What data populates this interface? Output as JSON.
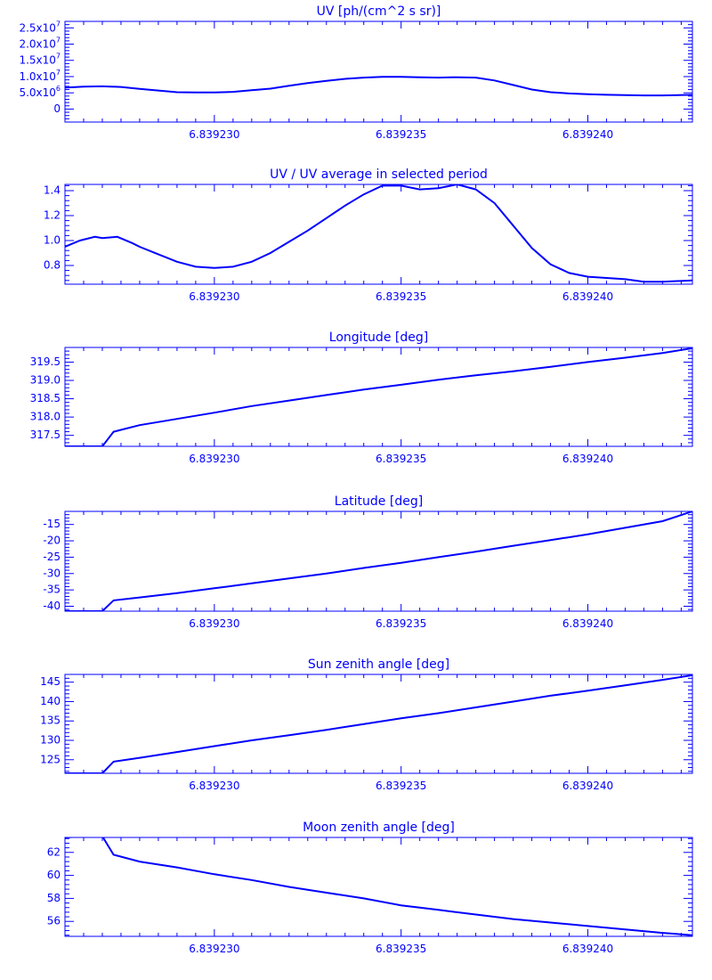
{
  "figure": {
    "color": "#0000ff"
  },
  "chart_data": [
    {
      "type": "line",
      "title": "UV [ph/(cm^2 s sr)]",
      "xlim": [
        6.839226,
        6.8392428
      ],
      "ylim": [
        -4000000,
        27000000
      ],
      "xticks": [
        6.83923,
        6.839235,
        6.83924
      ],
      "xtick_labels": [
        "6.839230",
        "6.839235",
        "6.839240"
      ],
      "yticks": [
        0,
        5000000,
        10000000,
        15000000,
        20000000,
        25000000
      ],
      "ytick_labels": [
        "0",
        "5.0x10^6",
        "1.0x10^7",
        "1.5x10^7",
        "2.0x10^7",
        "2.5x10^7"
      ],
      "x": [
        6.839226,
        6.8392265,
        6.839227,
        6.8392275,
        6.839228,
        6.8392285,
        6.839229,
        6.8392295,
        6.83923,
        6.8392305,
        6.839231,
        6.8392315,
        6.839232,
        6.8392325,
        6.839233,
        6.8392335,
        6.839234,
        6.8392345,
        6.839235,
        6.8392355,
        6.839236,
        6.8392365,
        6.839237,
        6.8392375,
        6.839238,
        6.8392385,
        6.839239,
        6.8392395,
        6.83924,
        6.8392405,
        6.839241,
        6.8392415,
        6.839242,
        6.8392428
      ],
      "values": [
        6600000,
        6900000,
        7000000,
        6800000,
        6200000,
        5700000,
        5200000,
        5100000,
        5100000,
        5300000,
        5800000,
        6300000,
        7200000,
        8000000,
        8700000,
        9300000,
        9700000,
        9900000,
        9900000,
        9800000,
        9700000,
        9800000,
        9700000,
        8800000,
        7400000,
        6000000,
        5200000,
        4800000,
        4600000,
        4400000,
        4300000,
        4200000,
        4200000,
        4400000
      ]
    },
    {
      "type": "line",
      "title": "UV / UV average in selected period",
      "xlim": [
        6.839226,
        6.8392428
      ],
      "ylim": [
        0.65,
        1.45
      ],
      "xticks": [
        6.83923,
        6.839235,
        6.83924
      ],
      "xtick_labels": [
        "6.839230",
        "6.839235",
        "6.839240"
      ],
      "yticks": [
        0.8,
        1.0,
        1.2,
        1.4
      ],
      "ytick_labels": [
        "0.8",
        "1.0",
        "1.2",
        "1.4"
      ],
      "x": [
        6.839226,
        6.8392264,
        6.8392268,
        6.839227,
        6.8392274,
        6.8392278,
        6.839228,
        6.8392285,
        6.839229,
        6.8392295,
        6.83923,
        6.8392305,
        6.839231,
        6.8392315,
        6.839232,
        6.8392325,
        6.839233,
        6.8392335,
        6.839234,
        6.8392345,
        6.839235,
        6.8392355,
        6.839236,
        6.8392365,
        6.839237,
        6.8392375,
        6.839238,
        6.8392385,
        6.839239,
        6.8392395,
        6.83924,
        6.8392405,
        6.839241,
        6.8392415,
        6.839242,
        6.8392428
      ],
      "values": [
        0.95,
        1.0,
        1.03,
        1.02,
        1.03,
        0.98,
        0.95,
        0.89,
        0.83,
        0.79,
        0.78,
        0.79,
        0.83,
        0.9,
        0.99,
        1.08,
        1.18,
        1.28,
        1.37,
        1.44,
        1.44,
        1.41,
        1.42,
        1.45,
        1.41,
        1.3,
        1.12,
        0.94,
        0.81,
        0.74,
        0.71,
        0.7,
        0.69,
        0.67,
        0.67,
        0.68
      ]
    },
    {
      "type": "line",
      "title": "Longitude [deg]",
      "xlim": [
        6.839226,
        6.8392428
      ],
      "ylim": [
        317.2,
        319.9
      ],
      "xticks": [
        6.83923,
        6.839235,
        6.83924
      ],
      "xtick_labels": [
        "6.839230",
        "6.839235",
        "6.839240"
      ],
      "yticks": [
        317.5,
        318.0,
        318.5,
        319.0,
        319.5
      ],
      "ytick_labels": [
        "317.5",
        "318.0",
        "318.5",
        "319.0",
        "319.5"
      ],
      "x": [
        6.839226,
        6.839227,
        6.8392273,
        6.8392275,
        6.839228,
        6.839229,
        6.83923,
        6.839231,
        6.839232,
        6.839233,
        6.839234,
        6.839235,
        6.839236,
        6.839237,
        6.839238,
        6.839239,
        6.83924,
        6.839241,
        6.839242,
        6.8392428
      ],
      "values": [
        317.2,
        317.2,
        317.6,
        317.65,
        317.78,
        317.95,
        318.12,
        318.3,
        318.45,
        318.6,
        318.75,
        318.88,
        319.02,
        319.14,
        319.25,
        319.37,
        319.5,
        319.62,
        319.75,
        319.88
      ]
    },
    {
      "type": "line",
      "title": "Latitude [deg]",
      "xlim": [
        6.839226,
        6.8392428
      ],
      "ylim": [
        -41.5,
        -11
      ],
      "xticks": [
        6.83923,
        6.839235,
        6.83924
      ],
      "xtick_labels": [
        "6.839230",
        "6.839235",
        "6.839240"
      ],
      "yticks": [
        -40,
        -35,
        -30,
        -25,
        -20,
        -15
      ],
      "ytick_labels": [
        "-40",
        "-35",
        "-30",
        "-25",
        "-20",
        "-15"
      ],
      "x": [
        6.839226,
        6.839227,
        6.8392273,
        6.839228,
        6.839229,
        6.83923,
        6.839231,
        6.839232,
        6.839233,
        6.839234,
        6.839235,
        6.839236,
        6.839237,
        6.839238,
        6.839239,
        6.83924,
        6.839241,
        6.839242,
        6.8392428
      ],
      "values": [
        -41.5,
        -41.5,
        -38.2,
        -37.3,
        -36.0,
        -34.5,
        -33.0,
        -31.5,
        -30.0,
        -28.3,
        -26.7,
        -25.0,
        -23.3,
        -21.5,
        -19.8,
        -18.0,
        -16.0,
        -14.0,
        -11.0
      ]
    },
    {
      "type": "line",
      "title": "Sun zenith angle [deg]",
      "xlim": [
        6.839226,
        6.8392428
      ],
      "ylim": [
        121.5,
        147
      ],
      "xticks": [
        6.83923,
        6.839235,
        6.83924
      ],
      "xtick_labels": [
        "6.839230",
        "6.839235",
        "6.839240"
      ],
      "yticks": [
        125,
        130,
        135,
        140,
        145
      ],
      "ytick_labels": [
        "125",
        "130",
        "135",
        "140",
        "145"
      ],
      "x": [
        6.839226,
        6.839227,
        6.8392273,
        6.839228,
        6.839229,
        6.83923,
        6.839231,
        6.839232,
        6.839233,
        6.839234,
        6.839235,
        6.839236,
        6.839237,
        6.839238,
        6.839239,
        6.83924,
        6.839241,
        6.839242,
        6.8392428
      ],
      "values": [
        121.5,
        121.5,
        124.5,
        125.5,
        127.0,
        128.5,
        130.0,
        131.3,
        132.7,
        134.2,
        135.7,
        137.0,
        138.5,
        140.0,
        141.5,
        142.8,
        144.2,
        145.6,
        146.8
      ]
    },
    {
      "type": "line",
      "title": "Moon zenith angle [deg]",
      "xlim": [
        6.839226,
        6.8392428
      ],
      "ylim": [
        54.7,
        63.3
      ],
      "xticks": [
        6.83923,
        6.839235,
        6.83924
      ],
      "xtick_labels": [
        "6.839230",
        "6.839235",
        "6.839240"
      ],
      "yticks": [
        56,
        58,
        60,
        62
      ],
      "ytick_labels": [
        "56",
        "58",
        "60",
        "62"
      ],
      "x": [
        6.839226,
        6.8392265,
        6.839227,
        6.8392273,
        6.839228,
        6.839229,
        6.83923,
        6.839231,
        6.839232,
        6.839233,
        6.839234,
        6.839235,
        6.839236,
        6.839237,
        6.839238,
        6.839239,
        6.83924,
        6.839241,
        6.839242,
        6.8392428
      ],
      "values": [
        63.3,
        63.4,
        63.4,
        61.8,
        61.2,
        60.7,
        60.1,
        59.6,
        59.0,
        58.5,
        58.0,
        57.4,
        57.0,
        56.6,
        56.2,
        55.9,
        55.6,
        55.3,
        55.0,
        54.8
      ]
    }
  ]
}
